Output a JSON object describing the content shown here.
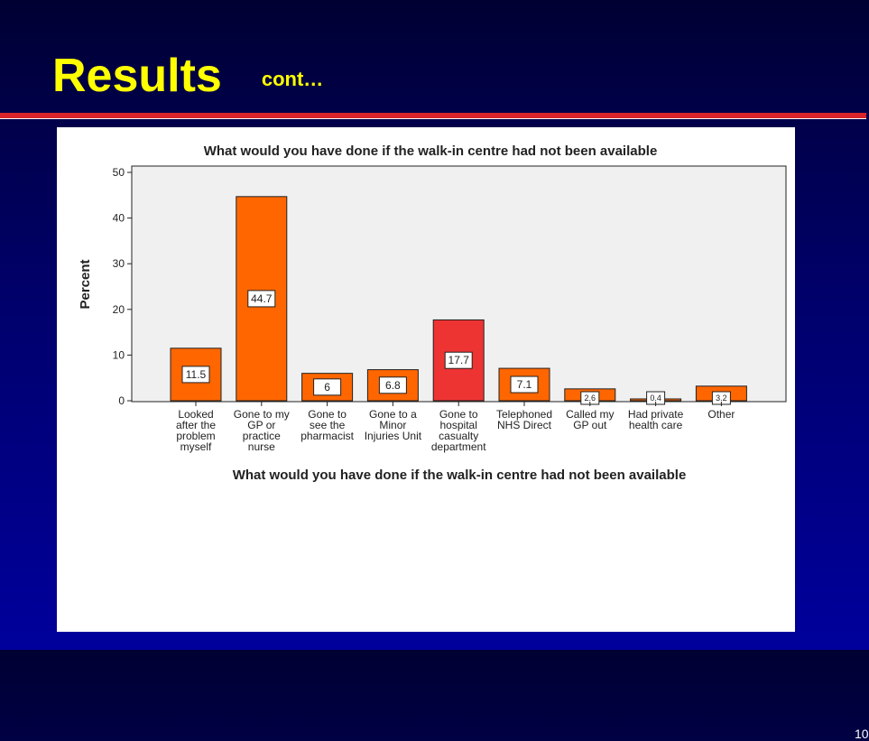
{
  "slide": {
    "title": "Results",
    "subtitle": "cont…",
    "page_number": "10"
  },
  "colors": {
    "title": "#ffff00",
    "rule": "#d8232a",
    "bar": "#ff6600",
    "bar_highlight": "#ee3333",
    "plot_background": "#f0f0f0"
  },
  "chart_data": {
    "type": "bar",
    "title": "What would you have done if the walk-in centre had not been available",
    "xlabel": "What would you have done if the walk-in centre had not been available",
    "ylabel": "Percent",
    "ylim": [
      0,
      50
    ],
    "yticks": [
      0,
      10,
      20,
      30,
      40,
      50
    ],
    "grid": false,
    "categories": [
      [
        "Looked",
        "after the",
        "problem",
        "myself"
      ],
      [
        "Gone to my",
        "GP or",
        "practice",
        "nurse"
      ],
      [
        "Gone to",
        "see the",
        "pharmacist"
      ],
      [
        "Gone to a",
        "Minor",
        "Injuries Unit"
      ],
      [
        "Gone to",
        "hospital",
        "casualty",
        "department"
      ],
      [
        "Telephoned",
        "NHS Direct"
      ],
      [
        "Called my",
        "GP out"
      ],
      [
        "Had private",
        "health care"
      ],
      [
        "Other"
      ]
    ],
    "values": [
      11.5,
      44.7,
      6,
      6.8,
      17.7,
      7.1,
      2.6,
      0.4,
      3.2
    ],
    "labels": [
      "11.5",
      "44.7",
      "6",
      "6.8",
      "17.7",
      "7.1",
      "2.6",
      "0.4",
      "3.2"
    ],
    "highlight_index": 4
  }
}
